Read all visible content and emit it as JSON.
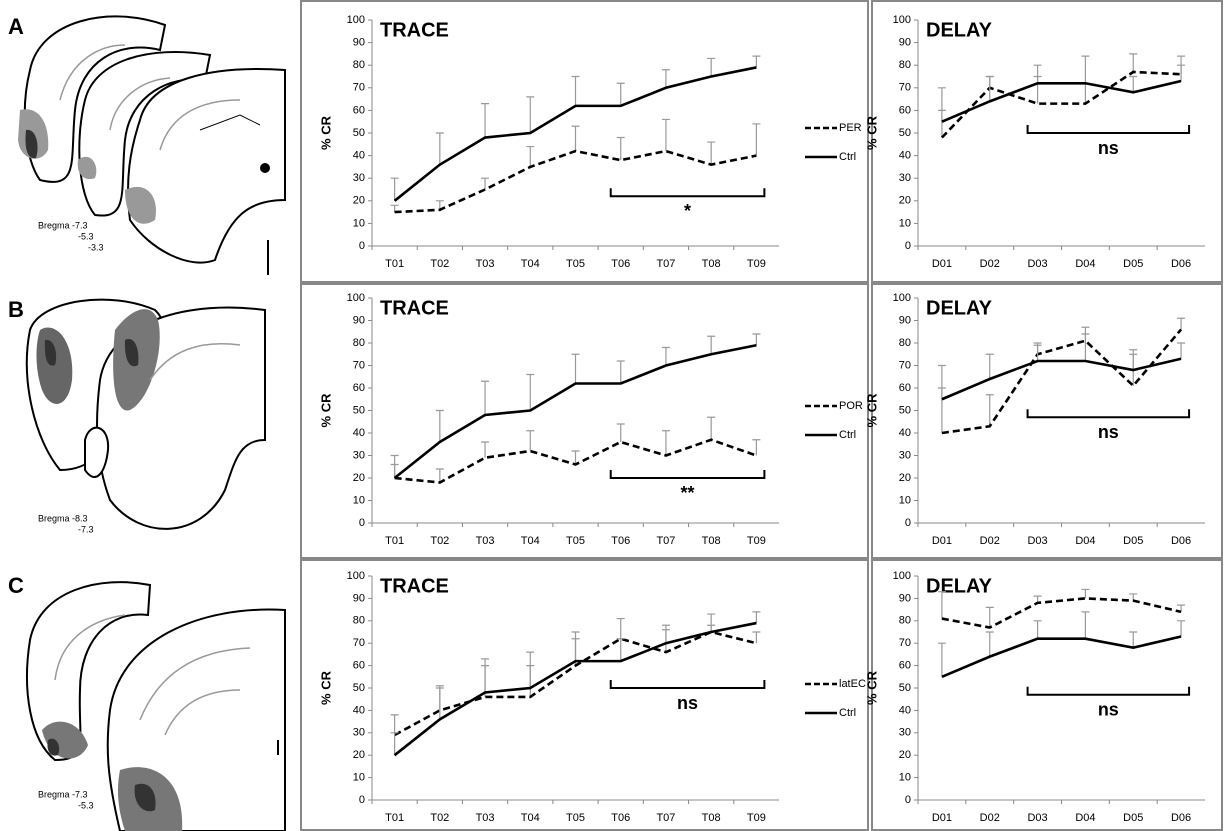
{
  "panels": [
    {
      "letter": "A",
      "bregma": [
        "Bregma -7.3",
        "-5.3",
        "-3.3"
      ]
    },
    {
      "letter": "B",
      "bregma": [
        "Bregma -8.3",
        "-7.3"
      ]
    },
    {
      "letter": "C",
      "bregma": [
        "Bregma -7.3",
        "-5.3"
      ]
    }
  ],
  "chart_data": [
    {
      "type": "line",
      "title": "TRACE",
      "y_label": "% CR",
      "legend": "right",
      "categories": [
        "T01",
        "T02",
        "T03",
        "T04",
        "T05",
        "T06",
        "T07",
        "T08",
        "T09"
      ],
      "series": [
        {
          "name": "PER",
          "color": "#000000",
          "dashed": true,
          "values": [
            15,
            16,
            25,
            35,
            42,
            38,
            42,
            36,
            40
          ],
          "errors": [
            3,
            4,
            5,
            9,
            11,
            10,
            14,
            10,
            14
          ]
        },
        {
          "name": "Ctrl",
          "color": "#000000",
          "dashed": false,
          "values": [
            20,
            36,
            48,
            50,
            62,
            62,
            70,
            75,
            79
          ],
          "errors": [
            10,
            14,
            15,
            16,
            13,
            10,
            8,
            8,
            5
          ]
        }
      ],
      "ylim": [
        0,
        100
      ],
      "yticks": [
        0,
        10,
        20,
        30,
        40,
        50,
        60,
        70,
        80,
        90,
        100
      ],
      "bracket": {
        "label": "*",
        "y": 22
      }
    },
    {
      "type": "line",
      "title": "DELAY",
      "y_label": "% CR",
      "categories": [
        "D01",
        "D02",
        "D03",
        "D04",
        "D05",
        "D06"
      ],
      "series": [
        {
          "color": "#000000",
          "dashed": true,
          "values": [
            48,
            70,
            63,
            63,
            77,
            76
          ],
          "errors": [
            12,
            5,
            12,
            9,
            8,
            8
          ]
        },
        {
          "color": "#000000",
          "dashed": false,
          "values": [
            55,
            64,
            72,
            72,
            68,
            73
          ],
          "errors": [
            15,
            11,
            8,
            12,
            7,
            7
          ]
        }
      ],
      "ylim": [
        0,
        100
      ],
      "yticks": [
        0,
        10,
        20,
        30,
        40,
        50,
        60,
        70,
        80,
        90,
        100
      ],
      "bracket": {
        "label": "ns",
        "y": 50
      }
    },
    {
      "type": "line",
      "title": "TRACE",
      "y_label": "% CR",
      "legend": "right",
      "categories": [
        "T01",
        "T02",
        "T03",
        "T04",
        "T05",
        "T06",
        "T07",
        "T08",
        "T09"
      ],
      "series": [
        {
          "name": "POR",
          "color": "#000000",
          "dashed": true,
          "values": [
            20,
            18,
            29,
            32,
            26,
            36,
            30,
            37,
            30
          ],
          "errors": [
            6,
            6,
            7,
            9,
            6,
            8,
            11,
            10,
            7
          ]
        },
        {
          "name": "Ctrl",
          "color": "#000000",
          "dashed": false,
          "values": [
            20,
            36,
            48,
            50,
            62,
            62,
            70,
            75,
            79
          ],
          "errors": [
            10,
            14,
            15,
            16,
            13,
            10,
            8,
            8,
            5
          ]
        }
      ],
      "ylim": [
        0,
        100
      ],
      "yticks": [
        0,
        10,
        20,
        30,
        40,
        50,
        60,
        70,
        80,
        90,
        100
      ],
      "bracket": {
        "label": "**",
        "y": 20
      }
    },
    {
      "type": "line",
      "title": "DELAY",
      "y_label": "% CR",
      "categories": [
        "D01",
        "D02",
        "D03",
        "D04",
        "D05",
        "D06"
      ],
      "series": [
        {
          "color": "#000000",
          "dashed": true,
          "values": [
            40,
            43,
            75,
            81,
            61,
            86
          ],
          "errors": [
            20,
            14,
            4,
            6,
            16,
            5
          ]
        },
        {
          "color": "#000000",
          "dashed": false,
          "values": [
            55,
            64,
            72,
            72,
            68,
            73
          ],
          "errors": [
            15,
            11,
            8,
            12,
            7,
            7
          ]
        }
      ],
      "ylim": [
        0,
        100
      ],
      "yticks": [
        0,
        10,
        20,
        30,
        40,
        50,
        60,
        70,
        80,
        90,
        100
      ],
      "bracket": {
        "label": "ns",
        "y": 47
      }
    },
    {
      "type": "line",
      "title": "TRACE",
      "y_label": "% CR",
      "legend": "right",
      "categories": [
        "T01",
        "T02",
        "T03",
        "T04",
        "T05",
        "T06",
        "T07",
        "T08",
        "T09"
      ],
      "series": [
        {
          "name": "latEC",
          "color": "#000000",
          "dashed": true,
          "values": [
            29,
            40,
            46,
            46,
            60,
            72,
            66,
            75,
            70
          ],
          "errors": [
            9,
            11,
            14,
            14,
            12,
            9,
            10,
            3,
            5
          ]
        },
        {
          "name": "Ctrl",
          "color": "#000000",
          "dashed": false,
          "values": [
            20,
            36,
            48,
            50,
            62,
            62,
            70,
            75,
            79
          ],
          "errors": [
            10,
            14,
            15,
            16,
            13,
            10,
            8,
            8,
            5
          ]
        }
      ],
      "ylim": [
        0,
        100
      ],
      "yticks": [
        0,
        10,
        20,
        30,
        40,
        50,
        60,
        70,
        80,
        90,
        100
      ],
      "bracket": {
        "label": "ns",
        "y": 50
      }
    },
    {
      "type": "line",
      "title": "DELAY",
      "y_label": "% CR",
      "categories": [
        "D01",
        "D02",
        "D03",
        "D04",
        "D05",
        "D06"
      ],
      "series": [
        {
          "color": "#000000",
          "dashed": true,
          "values": [
            81,
            77,
            88,
            90,
            89,
            84
          ],
          "errors": [
            12,
            9,
            3,
            4,
            3,
            3
          ]
        },
        {
          "color": "#000000",
          "dashed": false,
          "values": [
            55,
            64,
            72,
            72,
            68,
            73
          ],
          "errors": [
            15,
            11,
            8,
            12,
            7,
            7
          ]
        }
      ],
      "ylim": [
        0,
        100
      ],
      "yticks": [
        0,
        10,
        20,
        30,
        40,
        50,
        60,
        70,
        80,
        90,
        100
      ],
      "bracket": {
        "label": "ns",
        "y": 47
      }
    }
  ]
}
